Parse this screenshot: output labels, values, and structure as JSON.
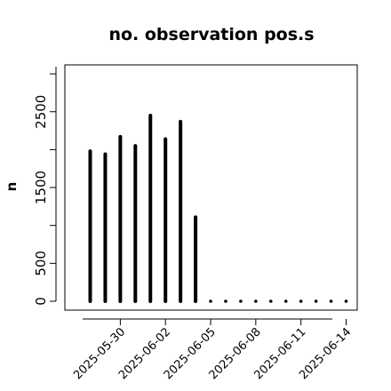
{
  "chart_data": {
    "type": "bar",
    "title": "no. observation pos.s",
    "xlabel": "",
    "ylabel": "n",
    "x": [
      "2025-05-28",
      "2025-05-29",
      "2025-05-30",
      "2025-05-31",
      "2025-06-01",
      "2025-06-02",
      "2025-06-03",
      "2025-06-04",
      "2025-06-05",
      "2025-06-06",
      "2025-06-07",
      "2025-06-08",
      "2025-06-09",
      "2025-06-10",
      "2025-06-11",
      "2025-06-12",
      "2025-06-13",
      "2025-06-14"
    ],
    "values": [
      1980,
      1940,
      2170,
      2050,
      2450,
      2140,
      2370,
      1110,
      0,
      0,
      0,
      0,
      0,
      0,
      0,
      0,
      0,
      0
    ],
    "ylim": [
      0,
      3000
    ],
    "yticks": [
      0,
      500,
      1500,
      2500
    ],
    "xticks": [
      "2025-05-30",
      "2025-06-02",
      "2025-06-05",
      "2025-06-08",
      "2025-06-11",
      "2025-06-14"
    ],
    "highlight_tick": "2025-06-05",
    "colors": {
      "bars": "#000000",
      "highlight": "#2e8b2e"
    },
    "grid": false,
    "legend": "none"
  }
}
